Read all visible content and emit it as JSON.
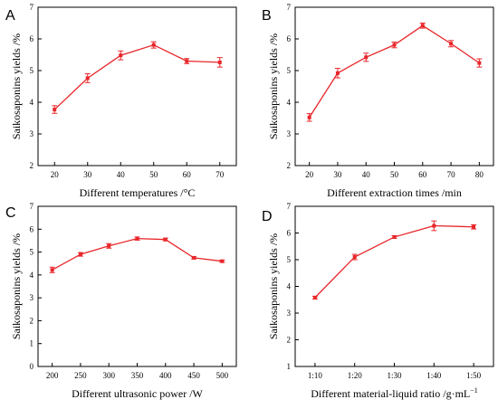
{
  "chart_data": [
    {
      "type": "line",
      "panel": "A",
      "x": [
        20,
        30,
        40,
        50,
        60,
        70
      ],
      "values": [
        3.77,
        4.76,
        5.48,
        5.81,
        5.3,
        5.26
      ],
      "errors": [
        0.12,
        0.14,
        0.14,
        0.1,
        0.08,
        0.15
      ],
      "xlabel": "Different temperatures /°C",
      "ylabel": "Saikosaponins yields /%",
      "xticks": [
        "20",
        "30",
        "40",
        "50",
        "60",
        "70"
      ],
      "xtick_values": [
        20,
        30,
        40,
        50,
        60,
        70
      ],
      "xlim": [
        15,
        75
      ],
      "ylim": [
        2,
        7
      ],
      "yticks": [
        2,
        3,
        4,
        5,
        6,
        7
      ],
      "grid": false,
      "color": "#e8262a"
    },
    {
      "type": "line",
      "panel": "B",
      "x": [
        20,
        30,
        40,
        50,
        60,
        70,
        80
      ],
      "values": [
        3.52,
        4.92,
        5.42,
        5.81,
        6.42,
        5.85,
        5.24
      ],
      "errors": [
        0.12,
        0.15,
        0.13,
        0.09,
        0.08,
        0.1,
        0.13
      ],
      "xlabel": "Different extraction times /min",
      "ylabel": "Saikosaponins yields /%",
      "xticks": [
        "20",
        "30",
        "40",
        "50",
        "60",
        "70",
        "80"
      ],
      "xtick_values": [
        20,
        30,
        40,
        50,
        60,
        70,
        80
      ],
      "xlim": [
        15,
        85
      ],
      "ylim": [
        2,
        7
      ],
      "yticks": [
        2,
        3,
        4,
        5,
        6,
        7
      ],
      "grid": false,
      "color": "#e8262a"
    },
    {
      "type": "line",
      "panel": "C",
      "x": [
        200,
        250,
        300,
        350,
        400,
        450,
        500
      ],
      "values": [
        4.22,
        4.9,
        5.27,
        5.59,
        5.55,
        4.75,
        4.6
      ],
      "errors": [
        0.12,
        0.08,
        0.1,
        0.07,
        0.06,
        0.05,
        0.05
      ],
      "xlabel": "Different ultrasonic power  /W",
      "ylabel": "Saikosaponins yields /%",
      "xticks": [
        "200",
        "250",
        "300",
        "350",
        "400",
        "450",
        "500"
      ],
      "xtick_values": [
        200,
        250,
        300,
        350,
        400,
        450,
        500
      ],
      "xlim": [
        175,
        525
      ],
      "ylim": [
        0,
        7
      ],
      "yticks": [
        0,
        1,
        2,
        3,
        4,
        5,
        6,
        7
      ],
      "grid": false,
      "color": "#e8262a"
    },
    {
      "type": "line",
      "panel": "D",
      "x": [
        "1:10",
        "1:20",
        "1:30",
        "1:40",
        "1:50"
      ],
      "values": [
        3.58,
        5.1,
        5.85,
        6.27,
        6.23
      ],
      "errors": [
        0.05,
        0.1,
        0.05,
        0.18,
        0.08
      ],
      "xlabel": "Different material-liquid ratio /g·mL",
      "xlabel_sup": "−1",
      "ylabel": "Saikosaponins yields /%",
      "xticks": [
        "1:10",
        "1:20",
        "1:30",
        "1:40",
        "1:50"
      ],
      "xtick_values": [
        10,
        20,
        30,
        40,
        50
      ],
      "xlim": [
        5,
        55
      ],
      "ylim": [
        1,
        7
      ],
      "yticks": [
        1,
        2,
        3,
        4,
        5,
        6,
        7
      ],
      "grid": false,
      "color": "#e8262a"
    }
  ]
}
